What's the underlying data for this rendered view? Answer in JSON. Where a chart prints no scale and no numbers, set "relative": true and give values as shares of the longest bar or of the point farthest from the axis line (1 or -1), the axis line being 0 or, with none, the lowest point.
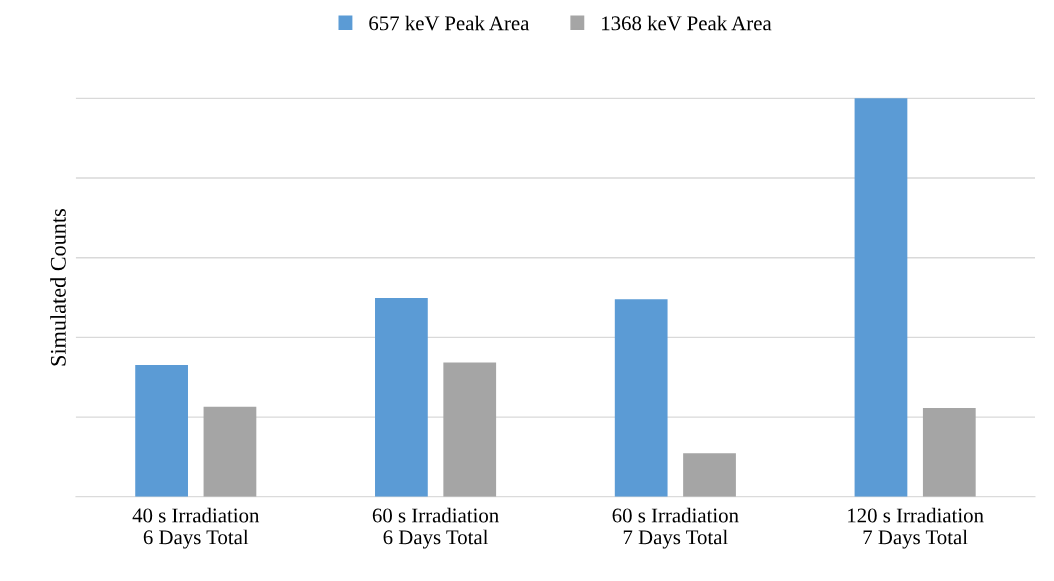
{
  "chart_data": {
    "type": "bar",
    "ylabel": "Simulated Counts",
    "categories": [
      "40 s Irradiation\n6 Days Total",
      "60 s Irradiation\n6 Days Total",
      "60 s Irradiation\n7 Days Total",
      "120 s Irradiation\n7 Days Total"
    ],
    "series": [
      {
        "name": "657 keV Peak Area",
        "color": "#5b9bd5",
        "values": [
          0.331,
          0.499,
          0.496,
          1
        ]
      },
      {
        "name": "1368 keV Peak Area",
        "color": "#a5a5a5",
        "values": [
          0.226,
          0.337,
          0.109,
          0.223
        ]
      }
    ],
    "relative": true,
    "grid": "y",
    "legend": "top"
  }
}
